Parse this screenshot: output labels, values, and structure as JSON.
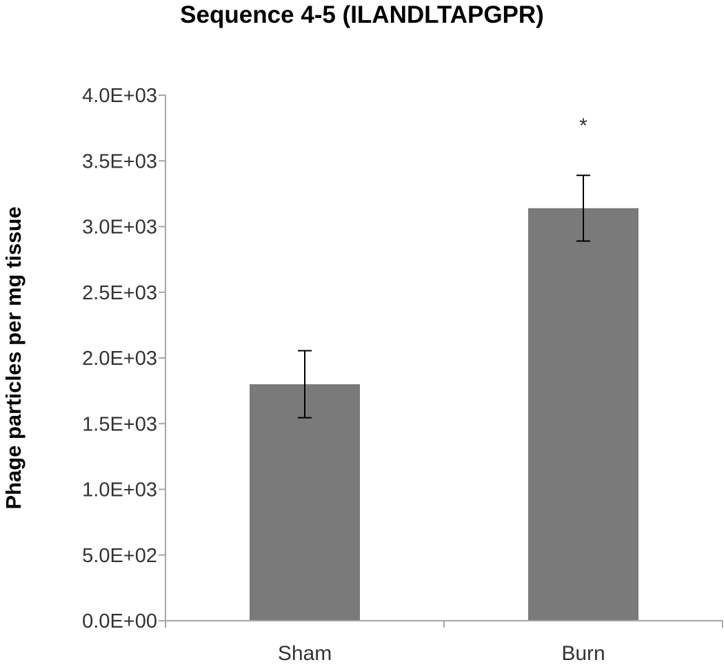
{
  "chart_data": {
    "type": "bar",
    "title": "Sequence 4-5 (ILANDLTAPGPR)",
    "xlabel": "",
    "ylabel": "Phage particles per mg tissue",
    "categories": [
      "Sham",
      "Burn"
    ],
    "values": [
      1800,
      3140
    ],
    "error": [
      255,
      250
    ],
    "ylim": [
      0,
      4000
    ],
    "yticks": [
      0,
      500,
      1000,
      1500,
      2000,
      2500,
      3000,
      3500,
      4000
    ],
    "ytick_labels": [
      "0.0E+00",
      "5.0E+02",
      "1.0E+03",
      "1.5E+03",
      "2.0E+03",
      "2.5E+03",
      "3.0E+03",
      "3.5E+03",
      "4.0E+03"
    ],
    "annotations": [
      {
        "category": "Burn",
        "text": "*"
      }
    ],
    "grid": false,
    "legend": "none",
    "colors": {
      "bar": "#7a7a7a",
      "axis": "#a6a6a6",
      "errorbar": "#000000"
    }
  }
}
